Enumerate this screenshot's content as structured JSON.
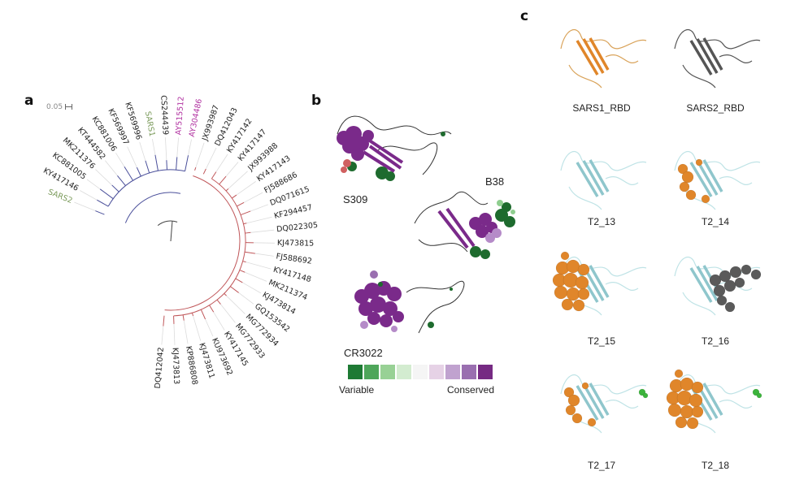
{
  "panels": {
    "a": {
      "letter": "a",
      "scale_label": "0.05",
      "colors": {
        "blue_clade": "#4a4f9a",
        "red_clade": "#c0575a",
        "sars": "#7a9a5a",
        "ay": "#b030a0",
        "default": "#222222",
        "leader": "#dcdcdc"
      },
      "leaves": [
        {
          "label": "SARS2",
          "group": "sars"
        },
        {
          "label": "KY417146",
          "group": "default"
        },
        {
          "label": "KC881005",
          "group": "default"
        },
        {
          "label": "MK211376",
          "group": "default"
        },
        {
          "label": "KT444582",
          "group": "default"
        },
        {
          "label": "KC881006",
          "group": "default"
        },
        {
          "label": "KF569997",
          "group": "default"
        },
        {
          "label": "KF569996",
          "group": "default"
        },
        {
          "label": "SARS1",
          "group": "sars"
        },
        {
          "label": "CS244439",
          "group": "default"
        },
        {
          "label": "AY515512",
          "group": "ay"
        },
        {
          "label": "AY304486",
          "group": "ay"
        },
        {
          "label": "JX993987",
          "group": "default"
        },
        {
          "label": "DQ412043",
          "group": "default"
        },
        {
          "label": "KY417142",
          "group": "default"
        },
        {
          "label": "KY417147",
          "group": "default"
        },
        {
          "label": "JX993988",
          "group": "default"
        },
        {
          "label": "KY417143",
          "group": "default"
        },
        {
          "label": "FJ588686",
          "group": "default"
        },
        {
          "label": "DQ071615",
          "group": "default"
        },
        {
          "label": "KF294457",
          "group": "default"
        },
        {
          "label": "DQ022305",
          "group": "default"
        },
        {
          "label": "KJ473815",
          "group": "default"
        },
        {
          "label": "FJ588692",
          "group": "default"
        },
        {
          "label": "KY417148",
          "group": "default"
        },
        {
          "label": "MK211374",
          "group": "default"
        },
        {
          "label": "KJ473814",
          "group": "default"
        },
        {
          "label": "GQ153542",
          "group": "default"
        },
        {
          "label": "MG772934",
          "group": "default"
        },
        {
          "label": "MG772933",
          "group": "default"
        },
        {
          "label": "KY417145",
          "group": "default"
        },
        {
          "label": "KU973692",
          "group": "default"
        },
        {
          "label": "KJ473811",
          "group": "default"
        },
        {
          "label": "KP886808",
          "group": "default"
        },
        {
          "label": "KJ473813",
          "group": "default"
        },
        {
          "label": "DQ412042",
          "group": "default"
        }
      ]
    },
    "b": {
      "letter": "b",
      "structures": [
        {
          "label": "S309"
        },
        {
          "label": "B38"
        },
        {
          "label": "CR3022"
        }
      ],
      "legend": {
        "left_label": "Variable",
        "right_label": "Conserved",
        "colors": [
          "#1e7a34",
          "#4ea65a",
          "#98d195",
          "#d3ecd0",
          "#f5f5f5",
          "#e6d2e6",
          "#c0a2cf",
          "#9a6fb0",
          "#762a83"
        ]
      }
    },
    "c": {
      "letter": "c",
      "structures": [
        {
          "label": "SARS1_RBD",
          "style": "orange-cartoon"
        },
        {
          "label": "SARS2_RBD",
          "style": "grey-cartoon"
        },
        {
          "label": "T2_13",
          "style": "plain"
        },
        {
          "label": "T2_14",
          "style": "orange-sheet"
        },
        {
          "label": "T2_15",
          "style": "orange-spheres"
        },
        {
          "label": "T2_16",
          "style": "grey-spheres"
        },
        {
          "label": "T2_17",
          "style": "orange-sheet-green"
        },
        {
          "label": "T2_18",
          "style": "orange-spheres-green"
        }
      ],
      "colors": {
        "orange": "#e0862a",
        "grey": "#555555",
        "pale": "#bfe3e6",
        "green": "#3cb43c"
      }
    }
  }
}
